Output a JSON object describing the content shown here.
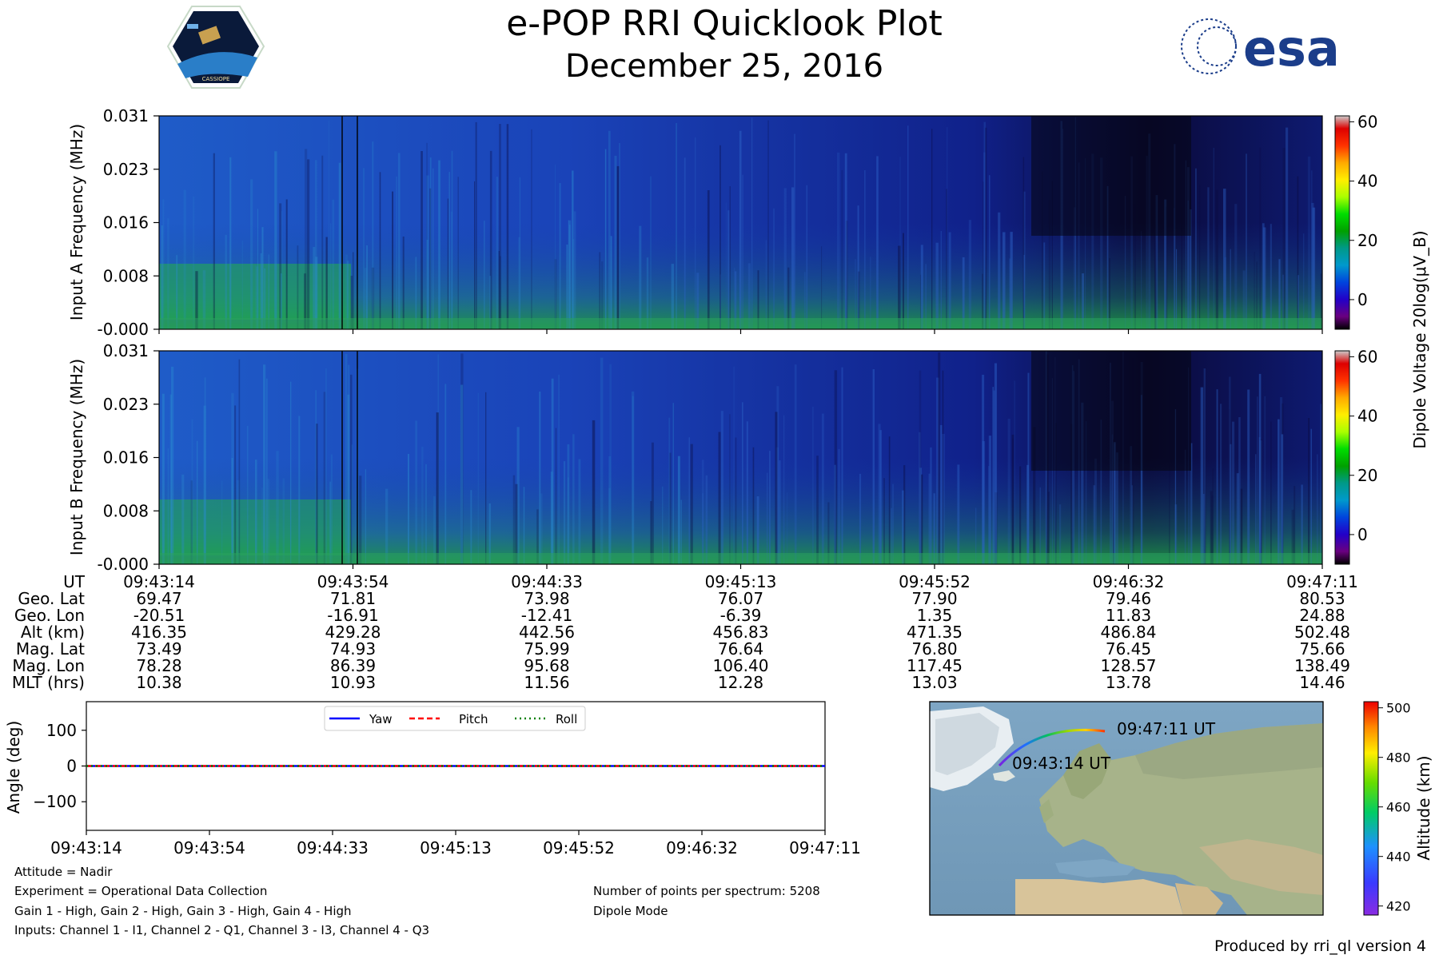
{
  "header": {
    "title": "e-POP RRI Quicklook Plot",
    "date": "December 25, 2016",
    "mission_logo_text": "CASSIOPE",
    "agency_logo_text": "esa"
  },
  "colors": {
    "background": "#ffffff",
    "axis": "#000000",
    "yaw": "#0000ff",
    "pitch": "#ff0000",
    "roll": "#008000",
    "esa_blue": "#1b3d8a"
  },
  "chart_data": [
    {
      "type": "heatmap",
      "name": "input-a-spectrogram",
      "ylabel": "Input A Frequency (MHz)",
      "ytick_labels": [
        "0.031",
        "0.023",
        "0.016",
        "0.008",
        "-0.000"
      ],
      "ylim": [
        0.0,
        0.031
      ],
      "xlim": [
        "09:43:14",
        "09:47:11"
      ],
      "colorbar": {
        "label": "Dipole Voltage 20log(μV_B)",
        "ticks": [
          60,
          40,
          20,
          0
        ],
        "tick_labels": [
          "60",
          "40",
          "20",
          "0"
        ],
        "range": [
          -10,
          62
        ],
        "colormap": "nipy_spectral"
      }
    },
    {
      "type": "heatmap",
      "name": "input-b-spectrogram",
      "ylabel": "Input B Frequency (MHz)",
      "ytick_labels": [
        "0.031",
        "0.023",
        "0.016",
        "0.008",
        "-0.000"
      ],
      "ylim": [
        0.0,
        0.031
      ],
      "xlim": [
        "09:43:14",
        "09:47:11"
      ],
      "colorbar": {
        "ticks": [
          60,
          40,
          20,
          0
        ],
        "tick_labels": [
          "60",
          "40",
          "20",
          "0"
        ],
        "range": [
          -10,
          62
        ],
        "colormap": "nipy_spectral"
      }
    },
    {
      "type": "table",
      "name": "ephemeris",
      "row_labels": [
        "UT",
        "Geo. Lat",
        "Geo. Lon",
        "Alt (km)",
        "Mag. Lat",
        "Mag. Lon",
        "MLT (hrs)"
      ],
      "columns": [
        [
          "09:43:14",
          "69.47",
          "-20.51",
          "416.35",
          "73.49",
          "78.28",
          "10.38"
        ],
        [
          "09:43:54",
          "71.81",
          "-16.91",
          "429.28",
          "74.93",
          "86.39",
          "10.93"
        ],
        [
          "09:44:33",
          "73.98",
          "-12.41",
          "442.56",
          "75.99",
          "95.68",
          "11.56"
        ],
        [
          "09:45:13",
          "76.07",
          "-6.39",
          "456.83",
          "76.64",
          "106.40",
          "12.28"
        ],
        [
          "09:45:52",
          "77.90",
          "1.35",
          "471.35",
          "76.80",
          "117.45",
          "13.03"
        ],
        [
          "09:46:32",
          "79.46",
          "11.83",
          "486.84",
          "76.45",
          "128.57",
          "13.78"
        ],
        [
          "09:47:11",
          "80.53",
          "24.88",
          "502.48",
          "75.66",
          "138.49",
          "14.46"
        ]
      ]
    },
    {
      "type": "line",
      "name": "attitude",
      "ylabel": "Angle (deg)",
      "ylim": [
        -180,
        180
      ],
      "yticks": [
        100,
        0,
        -100
      ],
      "ytick_labels": [
        "100",
        "0",
        "−100"
      ],
      "xtick_labels": [
        "09:43:14",
        "09:43:54",
        "09:44:33",
        "09:45:13",
        "09:45:52",
        "09:46:32",
        "09:47:11"
      ],
      "series": [
        {
          "name": "Yaw",
          "values": [
            0,
            0,
            0,
            0,
            0,
            0,
            0
          ]
        },
        {
          "name": "Pitch",
          "values": [
            0,
            0,
            0,
            0,
            0,
            0,
            0
          ]
        },
        {
          "name": "Roll",
          "values": [
            0,
            0,
            0,
            0,
            0,
            0,
            0
          ]
        }
      ],
      "legend": "top-center"
    },
    {
      "type": "scatter",
      "name": "ground-track-map",
      "start_label": "09:43:14 UT",
      "end_label": "09:47:11 UT",
      "track_geo_lon": [
        -20.51,
        -16.91,
        -12.41,
        -6.39,
        1.35,
        11.83,
        24.88
      ],
      "track_geo_lat": [
        69.47,
        71.81,
        73.98,
        76.07,
        77.9,
        79.46,
        80.53
      ],
      "track_alt_km": [
        416.35,
        429.28,
        442.56,
        456.83,
        471.35,
        486.84,
        502.48
      ],
      "colorbar": {
        "label": "Altitude (km)",
        "ticks": [
          500,
          480,
          460,
          440,
          420
        ],
        "tick_labels": [
          "500",
          "480",
          "460",
          "440",
          "420"
        ],
        "range": [
          416.35,
          502.48
        ]
      }
    }
  ],
  "footer": {
    "attitude": "Attitude = Nadir",
    "experiment": "Experiment = Operational Data Collection",
    "gains": "Gain 1 - High, Gain 2 - High, Gain 3 - High, Gain 4 - High",
    "inputs": "Inputs: Channel 1 - I1, Channel 2 - Q1, Channel 3 - I3, Channel 4 - Q3",
    "points": "Number of points per spectrum: 5208",
    "mode": "Dipole Mode",
    "produced_by": "Produced by rri_ql version 4"
  }
}
